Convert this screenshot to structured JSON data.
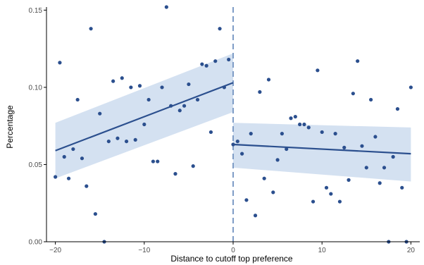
{
  "chart_data": {
    "type": "scatter",
    "title": "",
    "xlabel": "Distance to cutoff top preference",
    "ylabel": "Percentage",
    "xlim": [
      -21,
      21
    ],
    "ylim": [
      0,
      0.152
    ],
    "grid": false,
    "legend": "none",
    "x_ticks": [
      -20,
      -10,
      0,
      10,
      20
    ],
    "x_tick_labels": [
      "−20",
      "−10",
      "0",
      "10",
      "20"
    ],
    "y_ticks": [
      0.0,
      0.05,
      0.1,
      0.15
    ],
    "y_tick_labels": [
      "0.00",
      "0.05",
      "0.10",
      "0.15"
    ],
    "cutoff_x": 0,
    "colors": {
      "points": "#2b4f8e",
      "line": "#2b4f8e",
      "ribbon": "#cddcee",
      "cutoff": "#7e9cc6",
      "axis": "#000000"
    },
    "points": [
      {
        "x": -20,
        "y": 0.042
      },
      {
        "x": -19.5,
        "y": 0.116
      },
      {
        "x": -19,
        "y": 0.055
      },
      {
        "x": -18.5,
        "y": 0.041
      },
      {
        "x": -18,
        "y": 0.06
      },
      {
        "x": -17.5,
        "y": 0.092
      },
      {
        "x": -17,
        "y": 0.054
      },
      {
        "x": -16.5,
        "y": 0.036
      },
      {
        "x": -16,
        "y": 0.138
      },
      {
        "x": -15.5,
        "y": 0.018
      },
      {
        "x": -15,
        "y": 0.083
      },
      {
        "x": -14.5,
        "y": 0.0
      },
      {
        "x": -14,
        "y": 0.065
      },
      {
        "x": -13.5,
        "y": 0.104
      },
      {
        "x": -13,
        "y": 0.067
      },
      {
        "x": -12.5,
        "y": 0.106
      },
      {
        "x": -12,
        "y": 0.065
      },
      {
        "x": -11.5,
        "y": 0.1
      },
      {
        "x": -11,
        "y": 0.066
      },
      {
        "x": -10.5,
        "y": 0.101
      },
      {
        "x": -10,
        "y": 0.076
      },
      {
        "x": -9.5,
        "y": 0.092
      },
      {
        "x": -9,
        "y": 0.052
      },
      {
        "x": -8.5,
        "y": 0.052
      },
      {
        "x": -8,
        "y": 0.1
      },
      {
        "x": -7.5,
        "y": 0.152
      },
      {
        "x": -7,
        "y": 0.088
      },
      {
        "x": -6.5,
        "y": 0.044
      },
      {
        "x": -6,
        "y": 0.085
      },
      {
        "x": -5.5,
        "y": 0.088
      },
      {
        "x": -5,
        "y": 0.102
      },
      {
        "x": -4.5,
        "y": 0.049
      },
      {
        "x": -4,
        "y": 0.092
      },
      {
        "x": -3.5,
        "y": 0.115
      },
      {
        "x": -3,
        "y": 0.114
      },
      {
        "x": -2.5,
        "y": 0.071
      },
      {
        "x": -2,
        "y": 0.117
      },
      {
        "x": -1.5,
        "y": 0.138
      },
      {
        "x": -1,
        "y": 0.1
      },
      {
        "x": -0.5,
        "y": 0.118
      },
      {
        "x": 0,
        "y": 0.063
      },
      {
        "x": 0.5,
        "y": 0.065
      },
      {
        "x": 1,
        "y": 0.057
      },
      {
        "x": 1.5,
        "y": 0.027
      },
      {
        "x": 2,
        "y": 0.07
      },
      {
        "x": 2.5,
        "y": 0.017
      },
      {
        "x": 3,
        "y": 0.097
      },
      {
        "x": 3.5,
        "y": 0.041
      },
      {
        "x": 4,
        "y": 0.105
      },
      {
        "x": 4.5,
        "y": 0.032
      },
      {
        "x": 5,
        "y": 0.053
      },
      {
        "x": 5.5,
        "y": 0.07
      },
      {
        "x": 6,
        "y": 0.06
      },
      {
        "x": 6.5,
        "y": 0.08
      },
      {
        "x": 7,
        "y": 0.081
      },
      {
        "x": 7.5,
        "y": 0.076
      },
      {
        "x": 8,
        "y": 0.076
      },
      {
        "x": 8.5,
        "y": 0.074
      },
      {
        "x": 9,
        "y": 0.026
      },
      {
        "x": 9.5,
        "y": 0.111
      },
      {
        "x": 10,
        "y": 0.071
      },
      {
        "x": 10.5,
        "y": 0.035
      },
      {
        "x": 11,
        "y": 0.031
      },
      {
        "x": 11.5,
        "y": 0.07
      },
      {
        "x": 12,
        "y": 0.026
      },
      {
        "x": 12.5,
        "y": 0.061
      },
      {
        "x": 13,
        "y": 0.04
      },
      {
        "x": 13.5,
        "y": 0.096
      },
      {
        "x": 14,
        "y": 0.117
      },
      {
        "x": 14.5,
        "y": 0.062
      },
      {
        "x": 15,
        "y": 0.048
      },
      {
        "x": 15.5,
        "y": 0.092
      },
      {
        "x": 16,
        "y": 0.068
      },
      {
        "x": 16.5,
        "y": 0.038
      },
      {
        "x": 17,
        "y": 0.048
      },
      {
        "x": 17.5,
        "y": 0.0
      },
      {
        "x": 18,
        "y": 0.055
      },
      {
        "x": 18.5,
        "y": 0.086
      },
      {
        "x": 19,
        "y": 0.035
      },
      {
        "x": 19.5,
        "y": 0.0
      },
      {
        "x": 20,
        "y": 0.1
      }
    ],
    "fits": [
      {
        "x": [
          -20,
          0
        ],
        "y": [
          0.059,
          0.103
        ],
        "ci_lower": [
          0.041,
          0.084
        ],
        "ci_upper": [
          0.077,
          0.122
        ]
      },
      {
        "x": [
          0,
          20
        ],
        "y": [
          0.063,
          0.057
        ],
        "ci_lower": [
          0.048,
          0.039
        ],
        "ci_upper": [
          0.077,
          0.074
        ]
      }
    ]
  }
}
